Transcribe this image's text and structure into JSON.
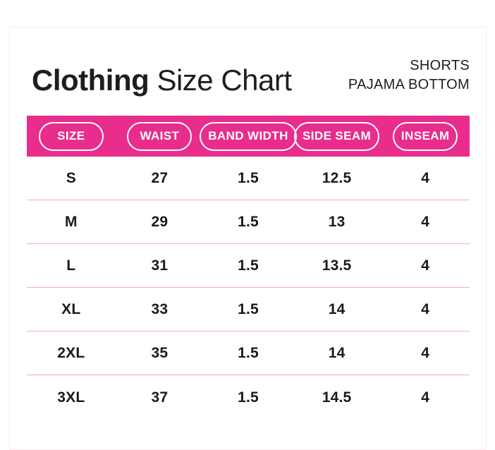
{
  "header": {
    "title_bold": "Clothing",
    "title_regular": "Size Chart",
    "subtitle_line1": "SHORTS",
    "subtitle_line2": "PAJAMA BOTTOM"
  },
  "chart_data": {
    "type": "table",
    "title": "Clothing Size Chart",
    "subtitle": "SHORTS PAJAMA BOTTOM",
    "columns": [
      "SIZE",
      "WAIST",
      "BAND WIDTH",
      "SIDE SEAM",
      "INSEAM"
    ],
    "rows": [
      [
        "S",
        "27",
        "1.5",
        "12.5",
        "4"
      ],
      [
        "M",
        "29",
        "1.5",
        "13",
        "4"
      ],
      [
        "L",
        "31",
        "1.5",
        "13.5",
        "4"
      ],
      [
        "XL",
        "33",
        "1.5",
        "14",
        "4"
      ],
      [
        "2XL",
        "35",
        "1.5",
        "14",
        "4"
      ],
      [
        "3XL",
        "37",
        "1.5",
        "14.5",
        "4"
      ]
    ]
  },
  "colors": {
    "header_band": "#E82D8C",
    "pill_outline": "#FFFFFF",
    "divider": "#F6A8CE",
    "text_dark": "#1E1E1E",
    "card_border": "#F9E7F0"
  }
}
